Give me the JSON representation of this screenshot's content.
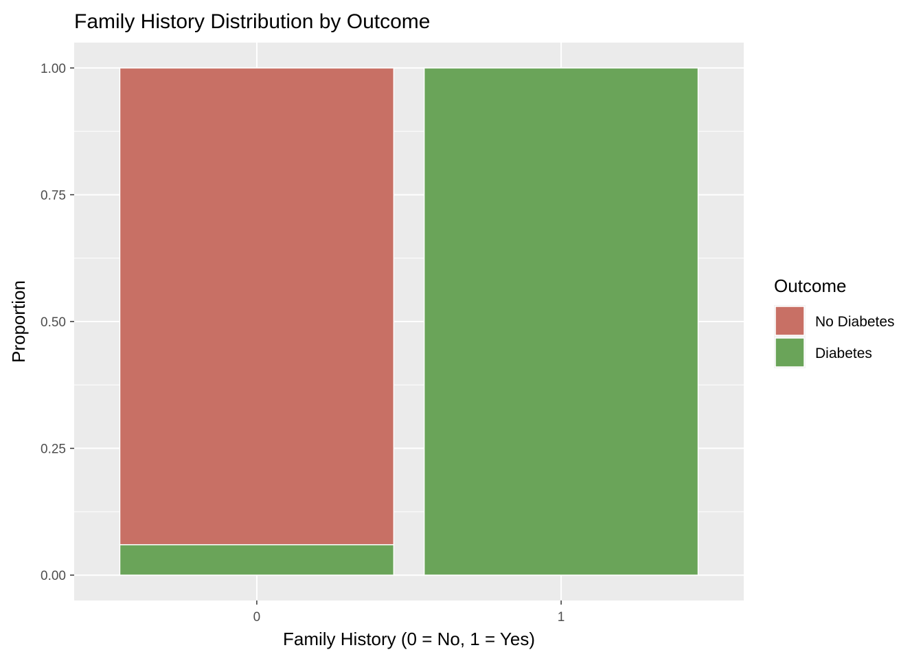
{
  "chart_data": {
    "type": "bar",
    "stacked": true,
    "title": "Family History Distribution by Outcome",
    "xlabel": "Family History (0 = No, 1 = Yes)",
    "ylabel": "Proportion",
    "categories": [
      "0",
      "1"
    ],
    "ylim": [
      -0.05,
      1.05
    ],
    "yticks": [
      0,
      0.25,
      0.5,
      0.75,
      1
    ],
    "ytick_labels": [
      "0.00",
      "0.25",
      "0.50",
      "0.75",
      "1.00"
    ],
    "series": [
      {
        "name": "Diabetes",
        "color": "#6aa459",
        "values": [
          0.06,
          1.0
        ]
      },
      {
        "name": "No Diabetes",
        "color": "#c87065",
        "values": [
          0.94,
          0.0
        ]
      }
    ],
    "legend": {
      "title": "Outcome",
      "position": "right",
      "entries": [
        {
          "label": "No Diabetes",
          "color": "#c87065"
        },
        {
          "label": "Diabetes",
          "color": "#6aa459"
        }
      ]
    },
    "grid": true,
    "panel_background": "#ebebeb"
  }
}
